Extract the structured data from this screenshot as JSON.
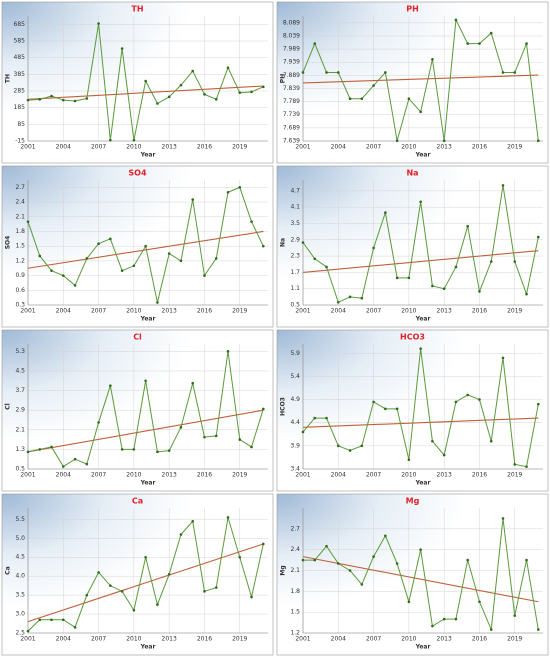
{
  "chart_data": [
    {
      "type": "line",
      "title": "TH",
      "xlabel": "Year",
      "ylabel": "TH",
      "color": "#5a9a3a",
      "trend_color": "#c0603a",
      "x": [
        2001,
        2002,
        2003,
        2004,
        2005,
        2006,
        2007,
        2008,
        2009,
        2010,
        2011,
        2012,
        2013,
        2014,
        2015,
        2016,
        2017,
        2018,
        2019,
        2020,
        2021
      ],
      "values": [
        230,
        235,
        255,
        230,
        225,
        240,
        690,
        -10,
        540,
        -10,
        345,
        210,
        250,
        320,
        405,
        265,
        235,
        425,
        275,
        280,
        310
      ],
      "trend_values": [
        235,
        315
      ],
      "xlim": [
        2001,
        2021.4
      ],
      "xticks": [
        2001,
        2004,
        2007,
        2010,
        2013,
        2016,
        2019
      ],
      "ylim": [
        -15,
        735
      ],
      "yticks": [
        -15,
        85,
        185,
        285,
        385,
        485,
        585,
        685
      ],
      "grid": true
    },
    {
      "type": "line",
      "title": "PH",
      "xlabel": "Year",
      "ylabel": "PH",
      "color": "#5a9a3a",
      "trend_color": "#c0603a",
      "x": [
        2001,
        2002,
        2003,
        2004,
        2005,
        2006,
        2007,
        2008,
        2009,
        2010,
        2011,
        2012,
        2013,
        2014,
        2015,
        2016,
        2017,
        2018,
        2019,
        2020,
        2021
      ],
      "values": [
        7.9,
        8.01,
        7.9,
        7.9,
        7.8,
        7.8,
        7.85,
        7.9,
        7.64,
        7.8,
        7.75,
        7.95,
        7.64,
        8.1,
        8.01,
        8.01,
        8.05,
        7.9,
        7.9,
        8.01,
        7.64
      ],
      "trend_values": [
        7.86,
        7.89
      ],
      "xlim": [
        2001,
        2021.4
      ],
      "xticks": [
        2001,
        2004,
        2007,
        2010,
        2013,
        2016,
        2019
      ],
      "ylim": [
        7.639,
        8.115
      ],
      "yticks": [
        7.639,
        7.689,
        7.739,
        7.789,
        7.839,
        7.889,
        7.939,
        7.989,
        8.039,
        8.089
      ],
      "grid": true
    },
    {
      "type": "line",
      "title": "SO4",
      "xlabel": "Year",
      "ylabel": "SO4",
      "color": "#5a9a3a",
      "trend_color": "#c0603a",
      "x": [
        2001,
        2002,
        2003,
        2004,
        2005,
        2006,
        2007,
        2008,
        2009,
        2010,
        2011,
        2012,
        2013,
        2014,
        2015,
        2016,
        2017,
        2018,
        2019,
        2020,
        2021
      ],
      "values": [
        2.0,
        1.3,
        1.0,
        0.9,
        0.7,
        1.25,
        1.55,
        1.65,
        1.0,
        1.1,
        1.5,
        0.35,
        1.35,
        1.2,
        2.45,
        0.9,
        1.25,
        2.6,
        2.7,
        2.0,
        1.5
      ],
      "trend_values": [
        1.05,
        1.8
      ],
      "xlim": [
        2001,
        2021.4
      ],
      "xticks": [
        2001,
        2004,
        2007,
        2010,
        2013,
        2016,
        2019
      ],
      "ylim": [
        0.3,
        2.85
      ],
      "yticks": [
        0.3,
        0.6,
        0.9,
        1.2,
        1.5,
        1.8,
        2.1,
        2.4,
        2.7
      ],
      "grid": true
    },
    {
      "type": "line",
      "title": "Na",
      "xlabel": "Year",
      "ylabel": "Na",
      "color": "#5a9a3a",
      "trend_color": "#c0603a",
      "x": [
        2001,
        2002,
        2003,
        2004,
        2005,
        2006,
        2007,
        2008,
        2009,
        2010,
        2011,
        2012,
        2013,
        2014,
        2015,
        2016,
        2017,
        2018,
        2019,
        2020,
        2021
      ],
      "values": [
        2.8,
        2.2,
        1.9,
        0.6,
        0.8,
        0.75,
        2.6,
        3.9,
        1.5,
        1.5,
        4.3,
        1.2,
        1.1,
        1.9,
        3.4,
        1.0,
        2.1,
        4.9,
        2.1,
        0.9,
        3.0
      ],
      "trend_values": [
        1.7,
        2.5
      ],
      "xlim": [
        2001,
        2021.4
      ],
      "xticks": [
        2001,
        2004,
        2007,
        2010,
        2013,
        2016,
        2019
      ],
      "ylim": [
        0.5,
        5.1
      ],
      "yticks": [
        0.5,
        1.1,
        1.7,
        2.3,
        2.9,
        3.5,
        4.1,
        4.7
      ],
      "grid": true
    },
    {
      "type": "line",
      "title": "Cl",
      "xlabel": "Year",
      "ylabel": "Cl",
      "color": "#5a9a3a",
      "trend_color": "#c0603a",
      "x": [
        2001,
        2002,
        2003,
        2004,
        2005,
        2006,
        2007,
        2008,
        2009,
        2010,
        2011,
        2012,
        2013,
        2014,
        2015,
        2016,
        2017,
        2018,
        2019,
        2020,
        2021
      ],
      "values": [
        1.2,
        1.3,
        1.4,
        0.6,
        0.9,
        0.7,
        2.4,
        3.9,
        1.3,
        1.3,
        4.1,
        1.2,
        1.25,
        2.2,
        4.0,
        1.8,
        1.85,
        5.3,
        1.7,
        1.4,
        2.95
      ],
      "trend_values": [
        1.2,
        2.9
      ],
      "xlim": [
        2001,
        2021.4
      ],
      "xticks": [
        2001,
        2004,
        2007,
        2010,
        2013,
        2016,
        2019
      ],
      "ylim": [
        0.5,
        5.6
      ],
      "yticks": [
        0.5,
        1.3,
        2.1,
        2.9,
        3.7,
        4.5,
        5.3
      ],
      "grid": true
    },
    {
      "type": "line",
      "title": "HCO3",
      "xlabel": "Year",
      "ylabel": "HCO3",
      "color": "#5a9a3a",
      "trend_color": "#c0603a",
      "x": [
        2001,
        2002,
        2003,
        2004,
        2005,
        2006,
        2007,
        2008,
        2009,
        2010,
        2011,
        2012,
        2013,
        2014,
        2015,
        2016,
        2017,
        2018,
        2019,
        2020,
        2021
      ],
      "values": [
        4.2,
        4.5,
        4.5,
        3.9,
        3.8,
        3.9,
        4.85,
        4.7,
        4.7,
        3.6,
        6.0,
        4.0,
        3.7,
        4.85,
        5.0,
        4.9,
        4.0,
        5.8,
        3.5,
        3.45,
        4.8
      ],
      "trend_values": [
        4.3,
        4.5
      ],
      "xlim": [
        2001,
        2021.4
      ],
      "xticks": [
        2001,
        2004,
        2007,
        2010,
        2013,
        2016,
        2019
      ],
      "ylim": [
        3.4,
        6.1
      ],
      "yticks": [
        3.4,
        3.9,
        4.4,
        4.9,
        5.4,
        5.9
      ],
      "grid": true
    },
    {
      "type": "line",
      "title": "Ca",
      "xlabel": "Year",
      "ylabel": "Ca",
      "color": "#5a9a3a",
      "trend_color": "#c0603a",
      "x": [
        2001,
        2002,
        2003,
        2004,
        2005,
        2006,
        2007,
        2008,
        2009,
        2010,
        2011,
        2012,
        2013,
        2014,
        2015,
        2016,
        2017,
        2018,
        2019,
        2020,
        2021
      ],
      "values": [
        2.55,
        2.85,
        2.85,
        2.85,
        2.65,
        3.5,
        4.1,
        3.75,
        3.6,
        3.1,
        4.5,
        3.25,
        4.05,
        5.1,
        5.45,
        3.6,
        3.7,
        5.55,
        4.5,
        3.45,
        4.85
      ],
      "trend_values": [
        2.8,
        4.85
      ],
      "xlim": [
        2001,
        2021.4
      ],
      "xticks": [
        2001,
        2004,
        2007,
        2010,
        2013,
        2016,
        2019
      ],
      "ylim": [
        2.5,
        5.8
      ],
      "yticks": [
        2.5,
        {
          "value": 3,
          "label": "3.0"
        },
        3.5,
        {
          "value": 4,
          "label": "4.0"
        },
        4.5,
        {
          "value": 5,
          "label": "5.0"
        },
        5.5
      ],
      "grid": true
    },
    {
      "type": "line",
      "title": "Mg",
      "xlabel": "Year",
      "ylabel": "Mg",
      "color": "#5a9a3a",
      "trend_color": "#c0603a",
      "x": [
        2001,
        2002,
        2003,
        2004,
        2005,
        2006,
        2007,
        2008,
        2009,
        2010,
        2011,
        2012,
        2013,
        2014,
        2015,
        2016,
        2017,
        2018,
        2019,
        2020,
        2021
      ],
      "values": [
        2.25,
        2.25,
        2.45,
        2.2,
        2.1,
        1.9,
        2.3,
        2.6,
        2.2,
        1.65,
        2.4,
        1.3,
        1.4,
        1.4,
        2.25,
        1.65,
        1.25,
        2.85,
        1.45,
        2.25,
        1.25
      ],
      "trend_values": [
        2.3,
        1.65
      ],
      "xlim": [
        2001,
        2021.4
      ],
      "xticks": [
        2001,
        2004,
        2007,
        2010,
        2013,
        2016,
        2019
      ],
      "ylim": [
        1.2,
        3.0
      ],
      "yticks": [
        1.2,
        1.5,
        1.8,
        2.1,
        2.4,
        2.7
      ],
      "grid": true
    }
  ]
}
